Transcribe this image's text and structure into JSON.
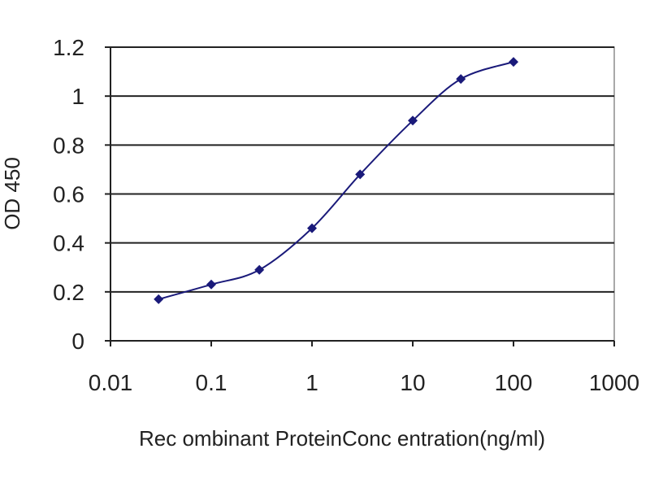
{
  "chart_data": {
    "type": "scatter",
    "title": "",
    "xlabel": "Rec ombinant ProteinConc entration(ng/ml)",
    "ylabel": "OD 450",
    "xscale": "log",
    "xlim": [
      0.01,
      1000
    ],
    "ylim": [
      0,
      1.2
    ],
    "x_ticks": [
      "0.01",
      "0.1",
      "1",
      "10",
      "100",
      "1000"
    ],
    "y_ticks": [
      "0",
      "0.2",
      "0.4",
      "0.6",
      "0.8",
      "1",
      "1.2"
    ],
    "grid": "horizontal",
    "legend": "none",
    "series": [
      {
        "x": [
          0.03,
          0.1,
          0.3,
          1,
          3,
          10,
          30,
          100
        ],
        "y": [
          0.17,
          0.23,
          0.29,
          0.46,
          0.68,
          0.9,
          1.07,
          1.14
        ],
        "marker": "diamond",
        "line": true,
        "color": "#1a1a7a"
      }
    ],
    "colors": {
      "plot_border": "#8c8c8c",
      "gridline": "#222222",
      "axis": "#222222"
    }
  }
}
